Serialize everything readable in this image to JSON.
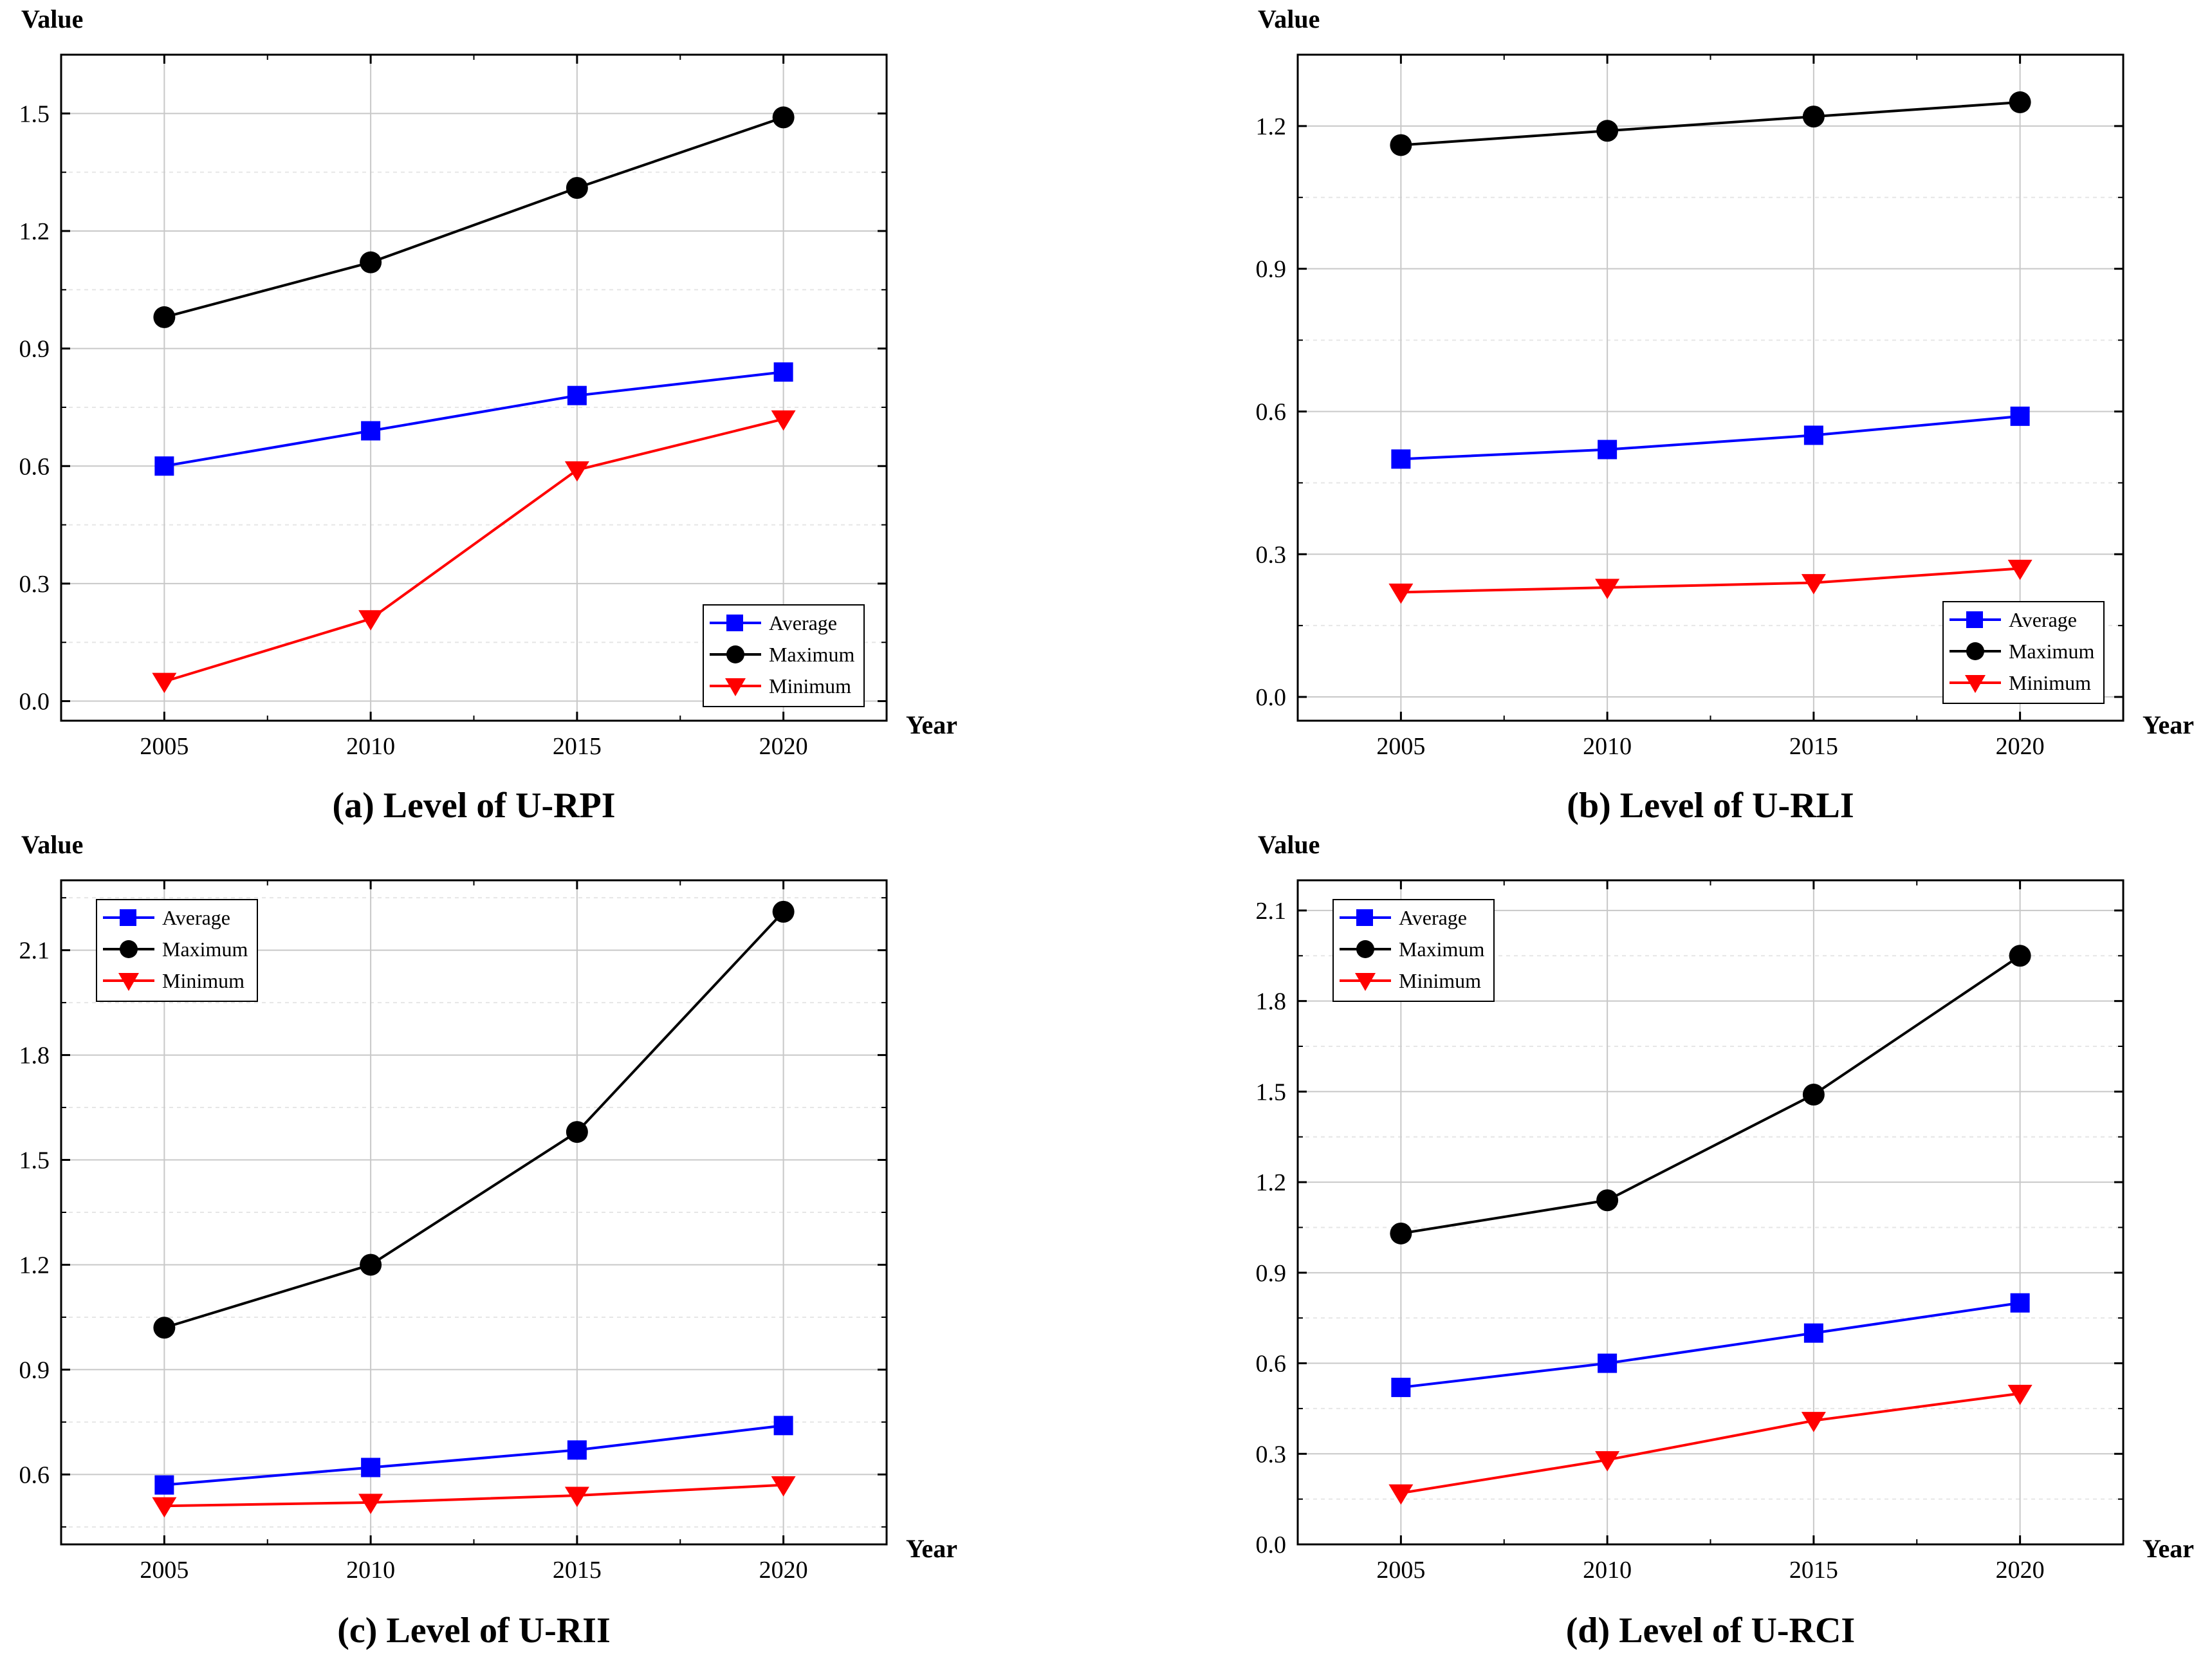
{
  "colors": {
    "Average": "#0000ff",
    "Maximum": "#000000",
    "Minimum": "#ff0000",
    "grid": "#c8c8c8",
    "minor_grid": "#e6e6e6"
  },
  "legend": {
    "entries": [
      "Average",
      "Maximum",
      "Minimum"
    ],
    "markers": [
      "square",
      "circle",
      "triangle-down"
    ]
  },
  "chart_data": [
    {
      "type": "line",
      "caption": "(a) Level of U-RPI",
      "ylabel": "Value",
      "xlabel": "Year",
      "x": [
        2005,
        2010,
        2015,
        2020
      ],
      "xlim": [
        2002.5,
        2022.5
      ],
      "ylim": [
        -0.05,
        1.65
      ],
      "yticks": [
        "0.0",
        "0.3",
        "0.6",
        "0.9",
        "1.2",
        "1.5"
      ],
      "legend_position": "bottom-right",
      "series": [
        {
          "name": "Average",
          "values": [
            0.6,
            0.69,
            0.78,
            0.84
          ]
        },
        {
          "name": "Maximum",
          "values": [
            0.98,
            1.12,
            1.31,
            1.49
          ]
        },
        {
          "name": "Minimum",
          "values": [
            0.05,
            0.21,
            0.59,
            0.72
          ]
        }
      ]
    },
    {
      "type": "line",
      "caption": "(b) Level of U-RLI",
      "ylabel": "Value",
      "xlabel": "Year",
      "x": [
        2005,
        2010,
        2015,
        2020
      ],
      "xlim": [
        2002.5,
        2022.5
      ],
      "ylim": [
        -0.05,
        1.35
      ],
      "yticks": [
        "0.0",
        "0.3",
        "0.6",
        "0.9",
        "1.2"
      ],
      "legend_position": "bottom-right",
      "series": [
        {
          "name": "Average",
          "values": [
            0.5,
            0.52,
            0.55,
            0.59
          ]
        },
        {
          "name": "Maximum",
          "values": [
            1.16,
            1.19,
            1.22,
            1.25
          ]
        },
        {
          "name": "Minimum",
          "values": [
            0.22,
            0.23,
            0.24,
            0.27
          ]
        }
      ]
    },
    {
      "type": "line",
      "caption": "(c) Level of U-RII",
      "ylabel": "Value",
      "xlabel": "Year",
      "x": [
        2005,
        2010,
        2015,
        2020
      ],
      "xlim": [
        2002.5,
        2022.5
      ],
      "ylim": [
        0.4,
        2.3
      ],
      "yticks": [
        "0.6",
        "0.9",
        "1.2",
        "1.5",
        "1.8",
        "2.1"
      ],
      "legend_position": "top-left",
      "series": [
        {
          "name": "Average",
          "values": [
            0.57,
            0.62,
            0.67,
            0.74
          ]
        },
        {
          "name": "Maximum",
          "values": [
            1.02,
            1.2,
            1.58,
            2.21
          ]
        },
        {
          "name": "Minimum",
          "values": [
            0.51,
            0.52,
            0.54,
            0.57
          ]
        }
      ]
    },
    {
      "type": "line",
      "caption": "(d) Level of U-RCI",
      "ylabel": "Value",
      "xlabel": "Year",
      "x": [
        2005,
        2010,
        2015,
        2020
      ],
      "xlim": [
        2002.5,
        2022.5
      ],
      "ylim": [
        0.0,
        2.2
      ],
      "yticks": [
        "0.0",
        "0.3",
        "0.6",
        "0.9",
        "1.2",
        "1.5",
        "1.8",
        "2.1"
      ],
      "legend_position": "top-left",
      "series": [
        {
          "name": "Average",
          "values": [
            0.52,
            0.6,
            0.7,
            0.8
          ]
        },
        {
          "name": "Maximum",
          "values": [
            1.03,
            1.14,
            1.49,
            1.95
          ]
        },
        {
          "name": "Minimum",
          "values": [
            0.17,
            0.28,
            0.41,
            0.5
          ]
        }
      ]
    }
  ]
}
